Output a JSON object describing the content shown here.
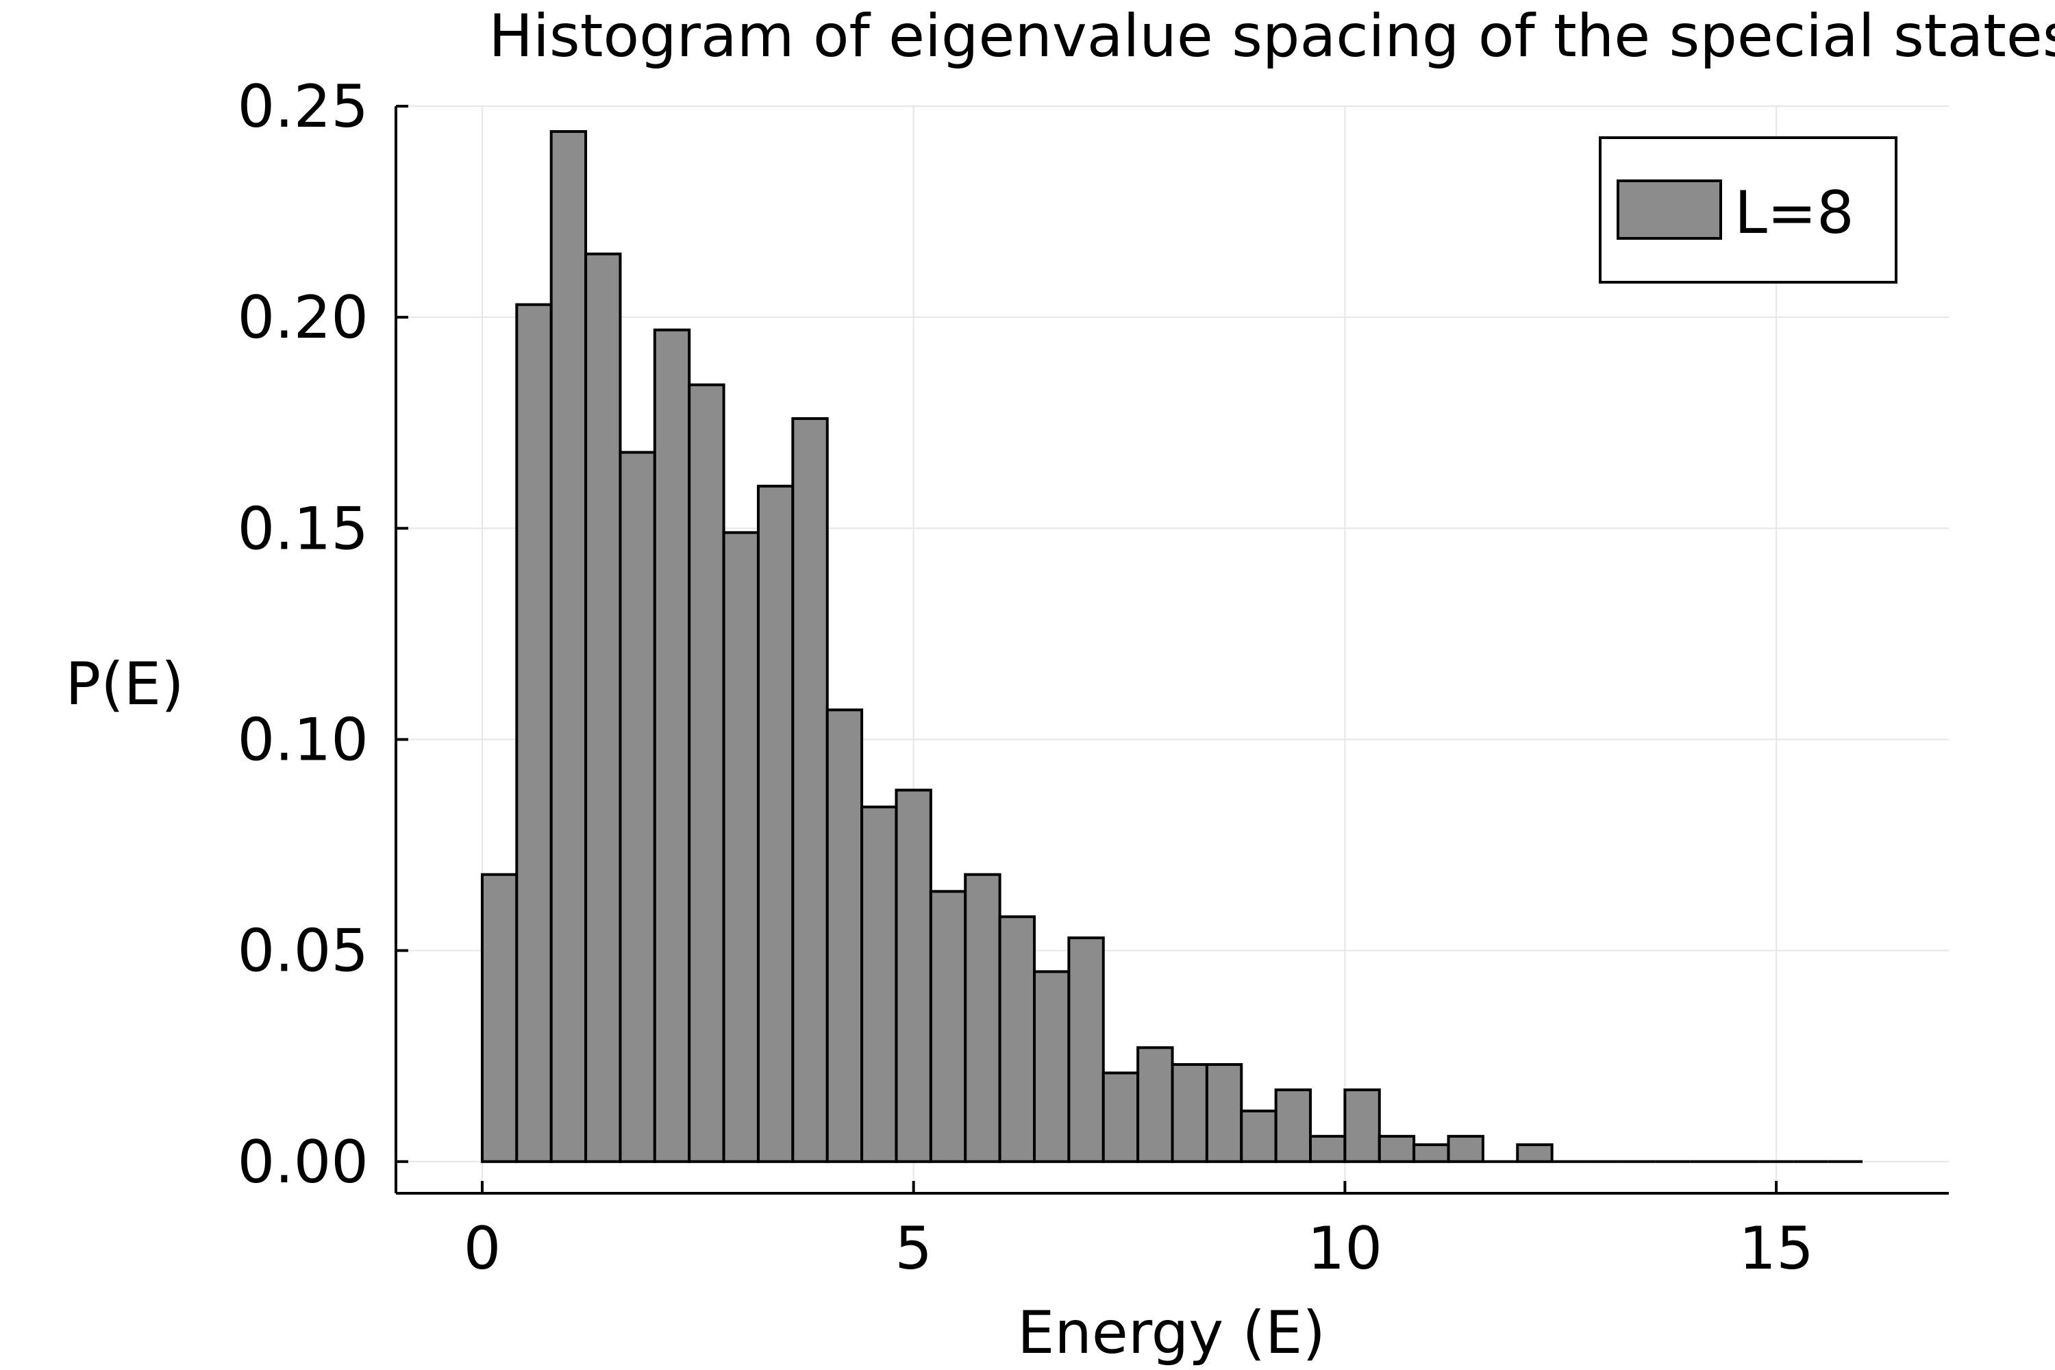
{
  "chart_data": {
    "type": "bar",
    "title": "Histogram of eigenvalue spacing of the special states",
    "xlabel": "Energy (E)",
    "ylabel": "P(E)",
    "xlim": [
      -1,
      17
    ],
    "ylim": [
      -0.0075,
      0.25
    ],
    "xticks": [
      0,
      5,
      10,
      15
    ],
    "xtick_labels": [
      "0",
      "5",
      "10",
      "15"
    ],
    "yticks": [
      0.0,
      0.05,
      0.1,
      0.15,
      0.2,
      0.25
    ],
    "ytick_labels": [
      "0.00",
      "0.05",
      "0.10",
      "0.15",
      "0.20",
      "0.25"
    ],
    "grid": true,
    "legend_position": "top-right",
    "bar_color": "#8c8c8c",
    "edge_color": "#000000",
    "bin_width": 0.4,
    "bin_start": 0.0,
    "series": [
      {
        "name": "L=8",
        "values": [
          0.068,
          0.203,
          0.244,
          0.215,
          0.168,
          0.197,
          0.184,
          0.149,
          0.16,
          0.176,
          0.107,
          0.084,
          0.088,
          0.064,
          0.068,
          0.058,
          0.045,
          0.053,
          0.021,
          0.027,
          0.023,
          0.023,
          0.012,
          0.017,
          0.006,
          0.017,
          0.006,
          0.004,
          0.006,
          0.0,
          0.004,
          0.0,
          0.0,
          0.0,
          0.0,
          0.0,
          0.0,
          0.0,
          0.0,
          0.0
        ]
      }
    ]
  }
}
